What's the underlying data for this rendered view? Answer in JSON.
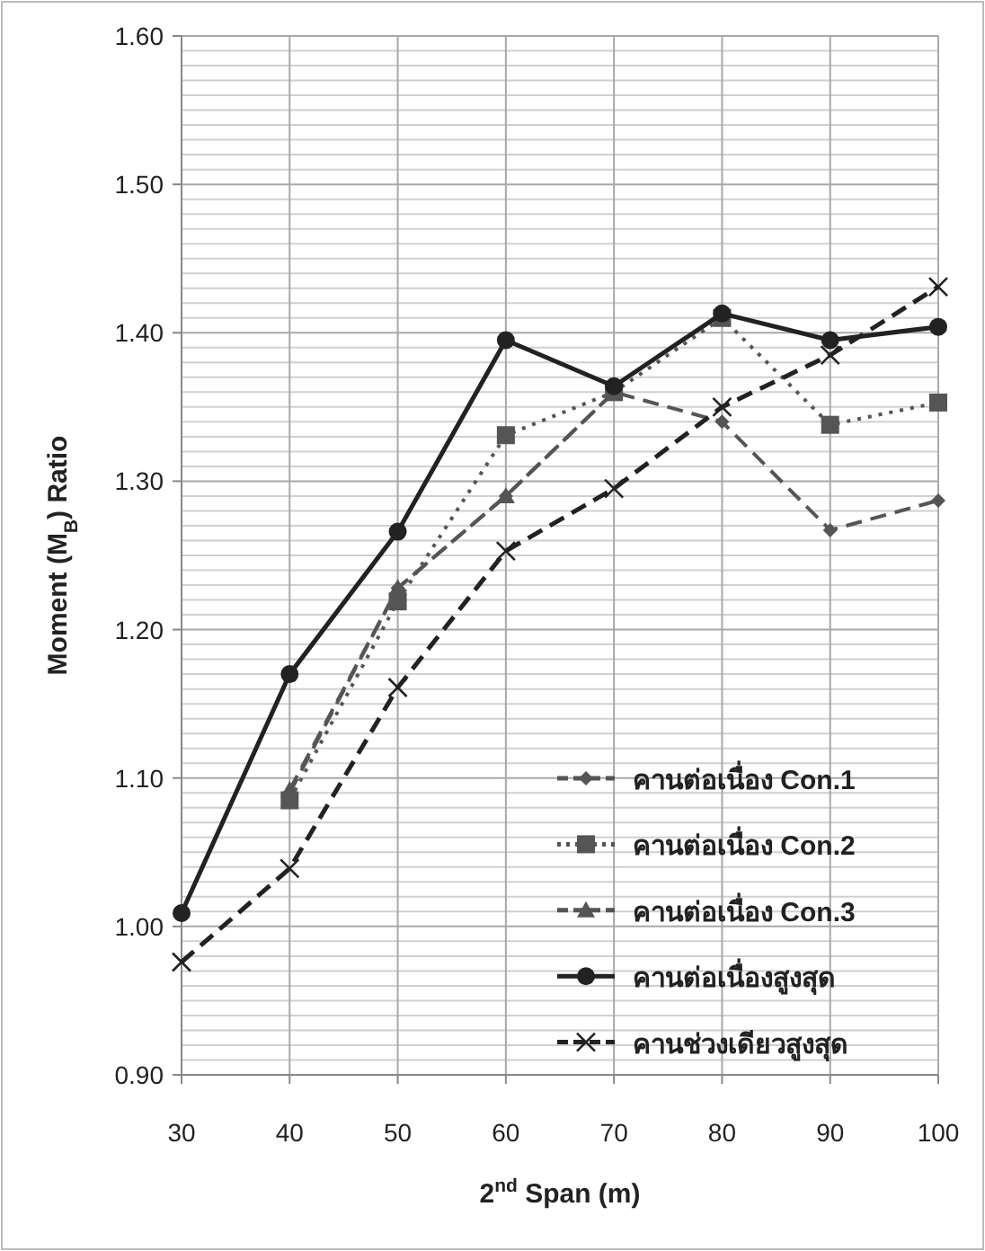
{
  "chart_data": {
    "type": "line",
    "xlabel": "2$^{nd}$ Span (m)",
    "ylabel": "Moment (M$_{B}$) Ratio",
    "x": [
      30,
      40,
      50,
      60,
      70,
      80,
      90,
      100
    ],
    "xlim": [
      30,
      100
    ],
    "xticks": [
      30,
      40,
      50,
      60,
      70,
      80,
      90,
      100
    ],
    "ylim": [
      0.9,
      1.6
    ],
    "yticks": [
      {
        "value": 0.9,
        "label": "0.90"
      },
      {
        "value": 1.0,
        "label": "1.00"
      },
      {
        "value": 1.1,
        "label": "1.10"
      },
      {
        "value": 1.2,
        "label": "1.20"
      },
      {
        "value": 1.3,
        "label": "1.30"
      },
      {
        "value": 1.4,
        "label": "1.40"
      },
      {
        "value": 1.5,
        "label": "1.50"
      },
      {
        "value": 1.6,
        "label": "1.60"
      }
    ],
    "grid": true,
    "legend": "bottom right",
    "series": [
      {
        "name": "คานต่อเนื่อง Con.1",
        "color": "#555555",
        "line_style": "dashed",
        "marker": "diamond",
        "values": [
          null,
          1.09,
          1.228,
          1.29,
          1.36,
          1.34,
          1.267,
          1.287
        ]
      },
      {
        "name": "คานต่อเนื่อง Con.2",
        "color": "#555555",
        "line_style": "dotted",
        "marker": "square",
        "values": [
          null,
          1.085,
          1.219,
          1.331,
          1.36,
          1.41,
          1.338,
          1.353
        ]
      },
      {
        "name": "คานต่อเนื่อง Con.3",
        "color": "#555555",
        "line_style": "dashed",
        "marker": "triangle",
        "values": [
          null,
          1.092,
          1.228,
          1.29,
          1.36,
          null,
          null,
          null
        ]
      },
      {
        "name": "คานต่อเนื่องสูงสุด",
        "color": "#222222",
        "line_style": "solid",
        "marker": "circle",
        "values": [
          1.009,
          1.17,
          1.266,
          1.395,
          1.364,
          1.413,
          1.395,
          1.404
        ]
      },
      {
        "name": "คานช่วงเดียวสูงสุด",
        "color": "#222222",
        "line_style": "dashed",
        "marker": "cross",
        "values": [
          0.976,
          1.039,
          1.161,
          1.253,
          1.295,
          1.35,
          1.385,
          1.431
        ]
      }
    ]
  }
}
